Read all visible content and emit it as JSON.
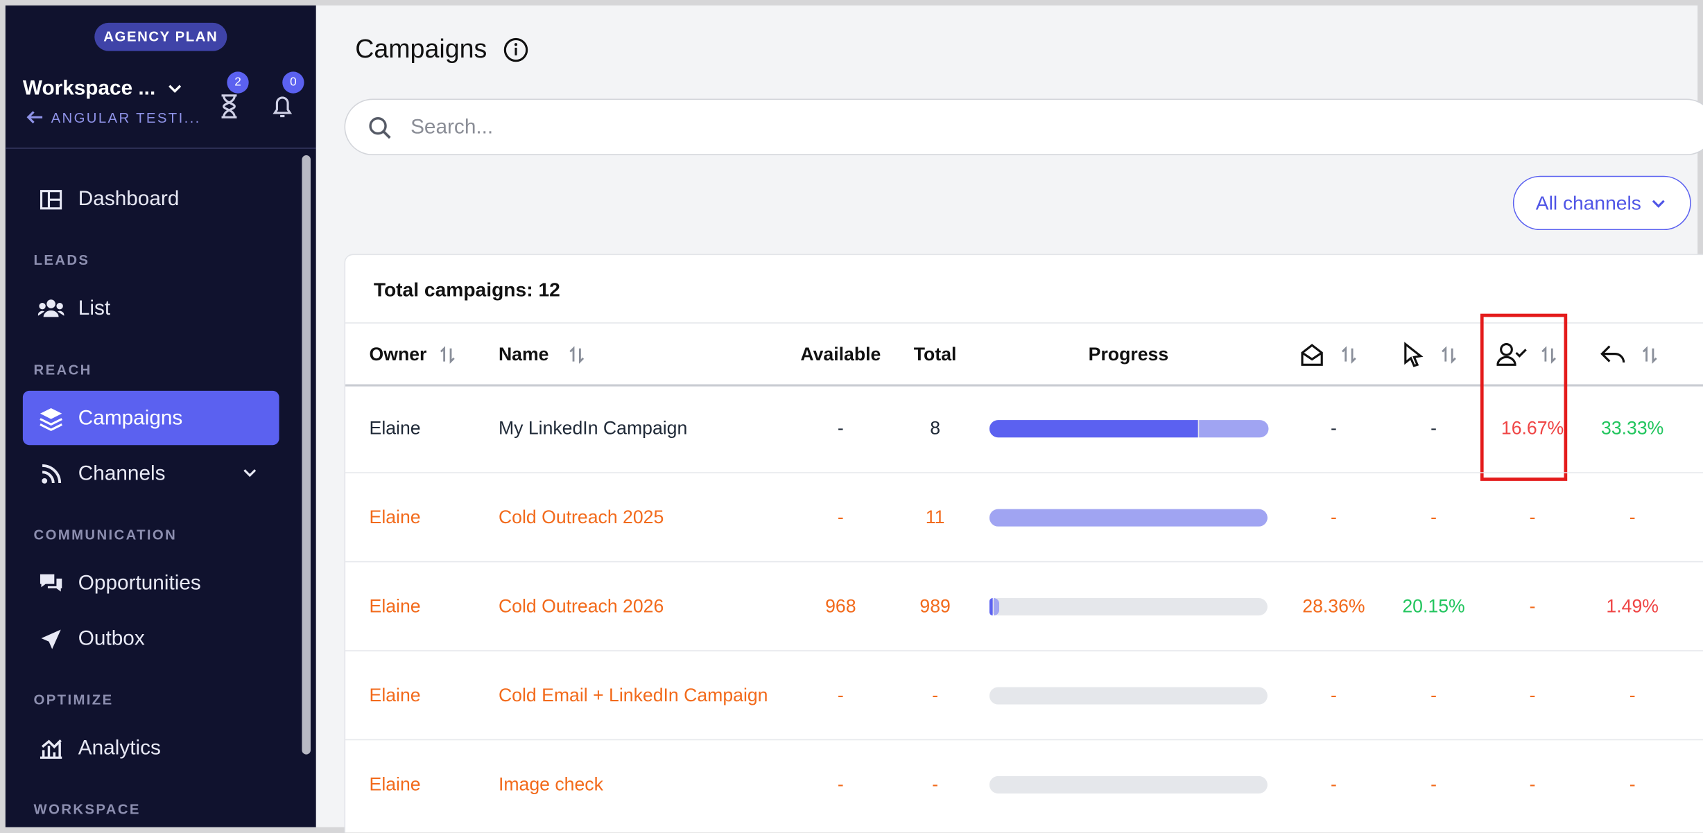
{
  "sidebar": {
    "plan": "AGENCY PLAN",
    "workspace": "Workspace ...",
    "back": "ANGULAR TESTI...",
    "timer_badge": 2,
    "notification_badge": 0,
    "nav": {
      "dashboard": "Dashboard",
      "leads": "LEADS",
      "list": "List",
      "reach": "REACH",
      "campaigns": "Campaigns",
      "channels": "Channels",
      "communication": "COMMUNICATION",
      "opportunities": "Opportunities",
      "outbox": "Outbox",
      "optimize": "OPTIMIZE",
      "analytics": "Analytics",
      "workspace": "WORKSPACE"
    }
  },
  "header": {
    "title": "Campaigns",
    "search_placeholder": "Search...",
    "filter": "All channels"
  },
  "table": {
    "total_label": "Total campaigns:",
    "total": 12,
    "columns": [
      "Owner",
      "Name",
      "Available",
      "Total",
      "Progress"
    ],
    "rows": [
      {
        "color": "#1f2937",
        "cells": [
          "Elaine",
          "My LinkedIn Campaign",
          "-",
          8,
          "-",
          "-",
          "16.67%",
          "33.33%"
        ],
        "metric_colors": [
          "#1f2937",
          "#1f2937",
          "#ef4444",
          "#22c55e"
        ],
        "progress": {
          "done": 0.75,
          "queued": 0.25
        }
      },
      {
        "color": "#f26a1b",
        "cells": [
          "Elaine",
          "Cold Outreach 2025",
          "-",
          11,
          "-",
          "-",
          "-",
          "-"
        ],
        "metric_colors": [
          "#f26a1b",
          "#f26a1b",
          "#f26a1b",
          "#f26a1b"
        ],
        "progress": {
          "done": 0,
          "queued": 1
        }
      },
      {
        "color": "#f26a1b",
        "cells": [
          "Elaine",
          "Cold Outreach 2026",
          968,
          989,
          "28.36%",
          "20.15%",
          "-",
          "1.49%"
        ],
        "metric_colors": [
          "#f26a1b",
          "#22c55e",
          "#f26a1b",
          "#ef4444"
        ],
        "progress": {
          "done": 0.01,
          "queued": 0.02
        }
      },
      {
        "color": "#f26a1b",
        "cells": [
          "Elaine",
          "Cold Email + LinkedIn Campaign",
          "-",
          "-",
          "-",
          "-",
          "-",
          "-"
        ],
        "metric_colors": [
          "#f26a1b",
          "#f26a1b",
          "#f26a1b",
          "#f26a1b"
        ],
        "progress": {
          "done": 0,
          "queued": 0
        }
      },
      {
        "color": "#f26a1b",
        "cells": [
          "Elaine",
          "Image check",
          "-",
          "-",
          "-",
          "-",
          "-",
          "-"
        ],
        "metric_colors": [
          "#f26a1b",
          "#f26a1b",
          "#f26a1b",
          "#f26a1b"
        ],
        "progress": {
          "done": 0,
          "queued": 0
        }
      }
    ]
  }
}
